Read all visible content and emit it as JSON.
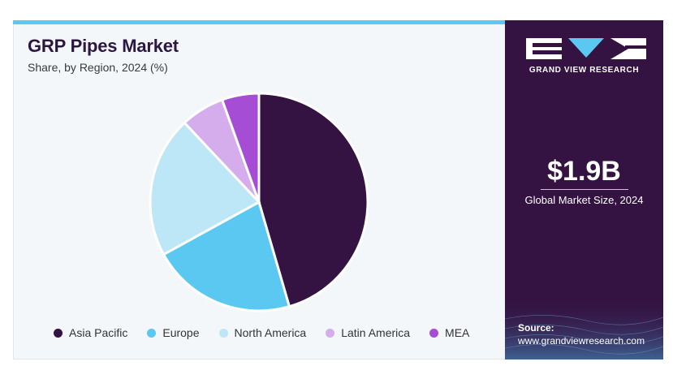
{
  "header": {
    "title": "GRP Pipes Market",
    "subtitle": "Share, by Region, 2024 (%)"
  },
  "chart_data": {
    "type": "pie",
    "title": "GRP Pipes Market",
    "subtitle": "Share, by Region, 2024 (%)",
    "categories": [
      "Asia Pacific",
      "Europe",
      "North America",
      "Latin America",
      "MEA"
    ],
    "values": [
      45.5,
      21.5,
      21,
      6.5,
      5.5
    ],
    "colors": [
      "#341241",
      "#5bc8f2",
      "#bde6f7",
      "#d5aded",
      "#a64dd6"
    ],
    "legend_position": "bottom",
    "start_angle": "12 o'clock, clockwise"
  },
  "sidebar": {
    "brand": "GRAND VIEW RESEARCH",
    "market_value": "$1.9B",
    "market_label": "Global Market Size, 2024",
    "source_label": "Source:",
    "source_url": "www.grandviewresearch.com"
  },
  "colors": {
    "panel": "#341241",
    "accent": "#5bc8f2"
  }
}
